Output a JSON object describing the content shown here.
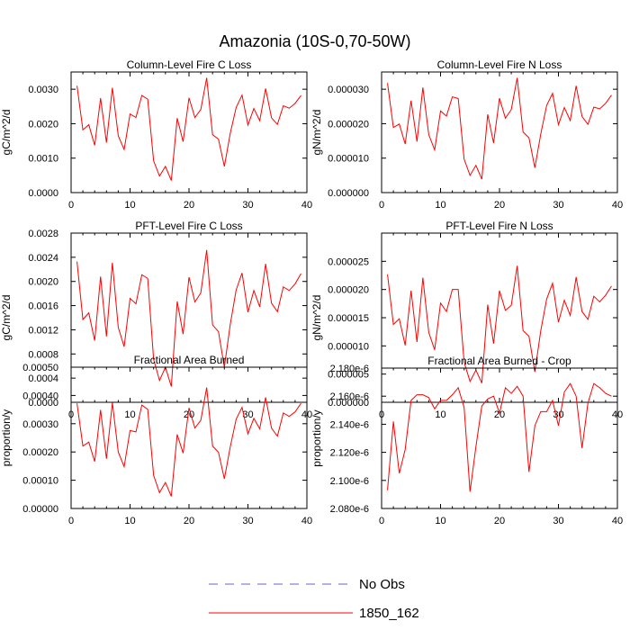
{
  "figure_title": "Amazonia (10S-0,70-50W)",
  "x": [
    1,
    2,
    3,
    4,
    5,
    6,
    7,
    8,
    9,
    10,
    11,
    12,
    13,
    14,
    15,
    16,
    17,
    18,
    19,
    20,
    21,
    22,
    23,
    24,
    25,
    26,
    27,
    28,
    29,
    30,
    31,
    32,
    33,
    34,
    35,
    36,
    37,
    38,
    39
  ],
  "legend": [
    {
      "label": "No Obs",
      "color": "#6666cc",
      "style": "dashed"
    },
    {
      "label": "1850_162",
      "color": "#ff0000",
      "style": "solid"
    }
  ],
  "chart_data": [
    {
      "type": "line",
      "title": "Column-Level Fire C Loss",
      "xlabel": "",
      "ylabel": "gC/m^2/d",
      "xlim": [
        0,
        40
      ],
      "ylim": [
        0,
        0.0035
      ],
      "xticks": [
        "0",
        "10",
        "20",
        "30",
        "40"
      ],
      "yticks": [
        {
          "value": 0,
          "label": "0.0000"
        },
        {
          "value": 0.001,
          "label": "0.0010"
        },
        {
          "value": 0.002,
          "label": "0.0020"
        },
        {
          "value": 0.003,
          "label": "0.0030"
        }
      ],
      "series": [
        {
          "name": "1850_162",
          "color": "#ff0000",
          "values": [
            0.0031,
            0.00182,
            0.00197,
            0.00137,
            0.00274,
            0.00145,
            0.00304,
            0.00165,
            0.00125,
            0.00228,
            0.00218,
            0.00282,
            0.00271,
            0.00092,
            0.00048,
            0.00076,
            0.00035,
            0.00216,
            0.00148,
            0.00275,
            0.00218,
            0.00241,
            0.00333,
            0.00168,
            0.00155,
            0.00076,
            0.00172,
            0.00247,
            0.00283,
            0.00196,
            0.00244,
            0.00209,
            0.00302,
            0.00217,
            0.00198,
            0.00252,
            0.00245,
            0.00259,
            0.00282
          ]
        }
      ]
    },
    {
      "type": "line",
      "title": "Column-Level Fire N Loss",
      "xlabel": "",
      "ylabel": "gN/m^2/d",
      "xlim": [
        0,
        40
      ],
      "ylim": [
        0,
        3.5e-05
      ],
      "xticks": [
        "0",
        "10",
        "20",
        "30",
        "40"
      ],
      "yticks": [
        {
          "value": 0,
          "label": "0.000000"
        },
        {
          "value": 1e-05,
          "label": "0.000010"
        },
        {
          "value": 2e-05,
          "label": "0.000020"
        },
        {
          "value": 3e-05,
          "label": "0.000030"
        }
      ],
      "series": [
        {
          "name": "1850_162",
          "color": "#ff0000",
          "values": [
            3.18e-05,
            1.89e-05,
            1.99e-05,
            1.41e-05,
            2.67e-05,
            1.48e-05,
            3.05e-05,
            1.68e-05,
            1.24e-05,
            2.37e-05,
            2.22e-05,
            2.78e-05,
            2.73e-05,
            9.7e-06,
            5e-06,
            7.9e-06,
            3.9e-06,
            2.27e-05,
            1.44e-05,
            2.74e-05,
            2.16e-05,
            2.41e-05,
            3.33e-05,
            1.76e-05,
            1.59e-05,
            7.2e-06,
            1.7e-05,
            2.53e-05,
            2.88e-05,
            1.97e-05,
            2.47e-05,
            2.09e-05,
            3.1e-05,
            2.21e-05,
            1.98e-05,
            2.48e-05,
            2.43e-05,
            2.59e-05,
            2.83e-05
          ]
        }
      ]
    },
    {
      "type": "line",
      "title": "PFT-Level Fire C Loss",
      "xlabel": "",
      "ylabel": "gC/m^2/d",
      "xlim": [
        0,
        40
      ],
      "ylim": [
        0,
        0.0028
      ],
      "xticks": [
        "0",
        "10",
        "20",
        "30",
        "40"
      ],
      "yticks": [
        {
          "value": 0,
          "label": "0.0000"
        },
        {
          "value": 0.0004,
          "label": "0.0004"
        },
        {
          "value": 0.0008,
          "label": "0.0008"
        },
        {
          "value": 0.0012,
          "label": "0.0012"
        },
        {
          "value": 0.0016,
          "label": "0.0016"
        },
        {
          "value": 0.002,
          "label": "0.0020"
        },
        {
          "value": 0.0024,
          "label": "0.0024"
        },
        {
          "value": 0.0028,
          "label": "0.0028"
        }
      ],
      "series": [
        {
          "name": "1850_162",
          "color": "#ff0000",
          "values": [
            0.00233,
            0.00137,
            0.00148,
            0.00102,
            0.00208,
            0.00109,
            0.00231,
            0.00124,
            0.00092,
            0.00172,
            0.00163,
            0.00211,
            0.00205,
            0.00071,
            0.00036,
            0.00058,
            0.00026,
            0.00167,
            0.00113,
            0.00207,
            0.00166,
            0.00181,
            0.00252,
            0.00128,
            0.00117,
            0.00058,
            0.00129,
            0.00186,
            0.00214,
            0.00149,
            0.00185,
            0.00158,
            0.00229,
            0.00164,
            0.0015,
            0.00191,
            0.00185,
            0.00196,
            0.00213
          ]
        }
      ]
    },
    {
      "type": "line",
      "title": "PFT-Level Fire N Loss",
      "xlabel": "",
      "ylabel": "gN/m^2/d",
      "xlim": [
        0,
        40
      ],
      "ylim": [
        0,
        3e-05
      ],
      "xticks": [
        "0",
        "10",
        "20",
        "30",
        "40"
      ],
      "yticks": [
        {
          "value": 0,
          "label": "0.000000"
        },
        {
          "value": 5e-06,
          "label": "0.000005"
        },
        {
          "value": 1e-05,
          "label": "0.000010"
        },
        {
          "value": 1.5e-05,
          "label": "0.000015"
        },
        {
          "value": 2e-05,
          "label": "0.000020"
        },
        {
          "value": 2.5e-05,
          "label": "0.000025"
        }
      ],
      "series": [
        {
          "name": "1850_162",
          "color": "#ff0000",
          "values": [
            2.27e-05,
            1.38e-05,
            1.48e-05,
            1.01e-05,
            1.98e-05,
            1.07e-05,
            2.21e-05,
            1.24e-05,
            9.3e-06,
            1.76e-05,
            1.61e-05,
            2e-05,
            2e-05,
            7.1e-06,
            3.7e-06,
            5.7e-06,
            3.4e-06,
            1.73e-05,
            1.04e-05,
            1.98e-05,
            1.63e-05,
            1.72e-05,
            2.42e-05,
            1.27e-05,
            1.17e-05,
            5.4e-06,
            1.27e-05,
            1.83e-05,
            2.11e-05,
            1.42e-05,
            1.81e-05,
            1.54e-05,
            2.22e-05,
            1.61e-05,
            1.47e-05,
            1.88e-05,
            1.78e-05,
            1.9e-05,
            2.06e-05
          ]
        }
      ]
    },
    {
      "type": "line",
      "title": "Fractional Area Burned",
      "xlabel": "",
      "ylabel": "proportion/y",
      "xlim": [
        0,
        40
      ],
      "ylim": [
        0,
        0.0005
      ],
      "xticks": [
        "0",
        "10",
        "20",
        "30",
        "40"
      ],
      "yticks": [
        {
          "value": 0,
          "label": "0.00000"
        },
        {
          "value": 0.0001,
          "label": "0.00010"
        },
        {
          "value": 0.0002,
          "label": "0.00020"
        },
        {
          "value": 0.0003,
          "label": "0.00030"
        },
        {
          "value": 0.0004,
          "label": "0.00040"
        },
        {
          "value": 0.0005,
          "label": "0.00050"
        }
      ],
      "series": [
        {
          "name": "1850_162",
          "color": "#ff0000",
          "values": [
            0.000372,
            0.000221,
            0.000235,
            0.000166,
            0.000349,
            0.000176,
            0.000374,
            0.0002,
            0.000148,
            0.000276,
            0.000271,
            0.000366,
            0.000351,
            0.000117,
            5.6e-05,
            9.2e-05,
            4.3e-05,
            0.000262,
            0.000196,
            0.000356,
            0.000285,
            0.000312,
            0.000428,
            0.000221,
            0.000199,
            0.000105,
            0.000218,
            0.000316,
            0.000358,
            0.000264,
            0.000319,
            0.000282,
            0.000393,
            0.000284,
            0.000256,
            0.000338,
            0.000326,
            0.000342,
            0.000372
          ]
        }
      ]
    },
    {
      "type": "line",
      "title": "Fractional Area Burned - Crop",
      "xlabel": "",
      "ylabel": "proportion/y",
      "xlim": [
        0,
        40
      ],
      "ylim": [
        2.08e-06,
        2.18e-06
      ],
      "xticks": [
        "0",
        "10",
        "20",
        "30",
        "40"
      ],
      "yticks": [
        {
          "value": 2.08e-06,
          "label": "2.080e-6"
        },
        {
          "value": 2.1e-06,
          "label": "2.100e-6"
        },
        {
          "value": 2.12e-06,
          "label": "2.120e-6"
        },
        {
          "value": 2.14e-06,
          "label": "2.140e-6"
        },
        {
          "value": 2.16e-06,
          "label": "2.160e-6"
        },
        {
          "value": 2.18e-06,
          "label": "2.180e-6"
        }
      ],
      "series": [
        {
          "name": "1850_162",
          "color": "#ff0000",
          "values": [
            2.093e-06,
            2.142e-06,
            2.105e-06,
            2.122e-06,
            2.157e-06,
            2.161e-06,
            2.161e-06,
            2.159e-06,
            2.151e-06,
            2.157e-06,
            2.157e-06,
            2.161e-06,
            2.166e-06,
            2.152e-06,
            2.092e-06,
            2.124e-06,
            2.153e-06,
            2.158e-06,
            2.16e-06,
            2.148e-06,
            2.166e-06,
            2.162e-06,
            2.167e-06,
            2.16e-06,
            2.106e-06,
            2.139e-06,
            2.149e-06,
            2.149e-06,
            2.157e-06,
            2.139e-06,
            2.163e-06,
            2.169e-06,
            2.16e-06,
            2.123e-06,
            2.155e-06,
            2.169e-06,
            2.166e-06,
            2.162e-06,
            2.16e-06
          ]
        }
      ]
    }
  ]
}
